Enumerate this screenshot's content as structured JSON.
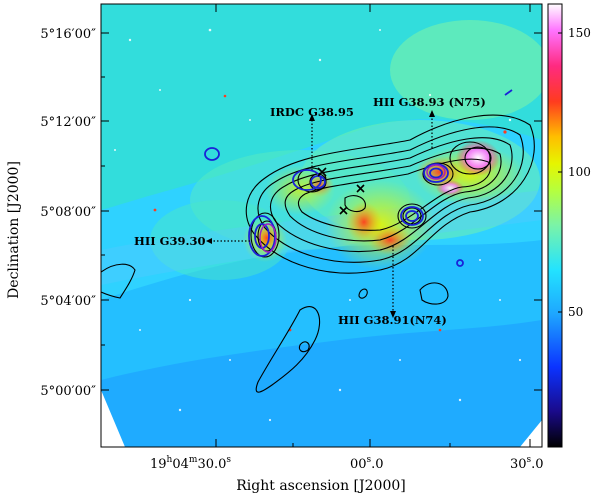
{
  "figure": {
    "y_axis_title": "Declination [J2000]",
    "x_axis_title": "Right ascension [J2000]",
    "y_ticks": [
      "5°16′00″",
      "5°12′00″",
      "5°08′00″",
      "5°04′00″",
      "5°00′00″"
    ],
    "x_ticks": {
      "t1": {
        "h": "19",
        "hsup": "h",
        "m": "04",
        "msup": "m",
        "s": "30.0",
        "ssup": "s"
      },
      "t2": {
        "s": "00",
        "ssup": "s",
        "frac": ".0"
      },
      "t3": {
        "s": "30",
        "ssup": "s",
        "frac": ".0"
      }
    },
    "colorbar_ticks": [
      "150",
      "100",
      "50"
    ],
    "annotations": {
      "irdc": "IRDC G38.95",
      "n75": "HII G38.93 (N75)",
      "g3930": "HII G39.30",
      "n74": "HII G38.91(N74)"
    }
  },
  "colors": {
    "contour_black": "#000000",
    "contour_blue": "#1a22d8",
    "cmap": [
      "#000000",
      "#1a0a8a",
      "#0b33ff",
      "#1ea6ff",
      "#23e3ff",
      "#7af3a8",
      "#b6ff3d",
      "#e6f500",
      "#ffbf00",
      "#ff3b1f",
      "#ff2a80",
      "#ff73ff",
      "#ffffff"
    ]
  }
}
